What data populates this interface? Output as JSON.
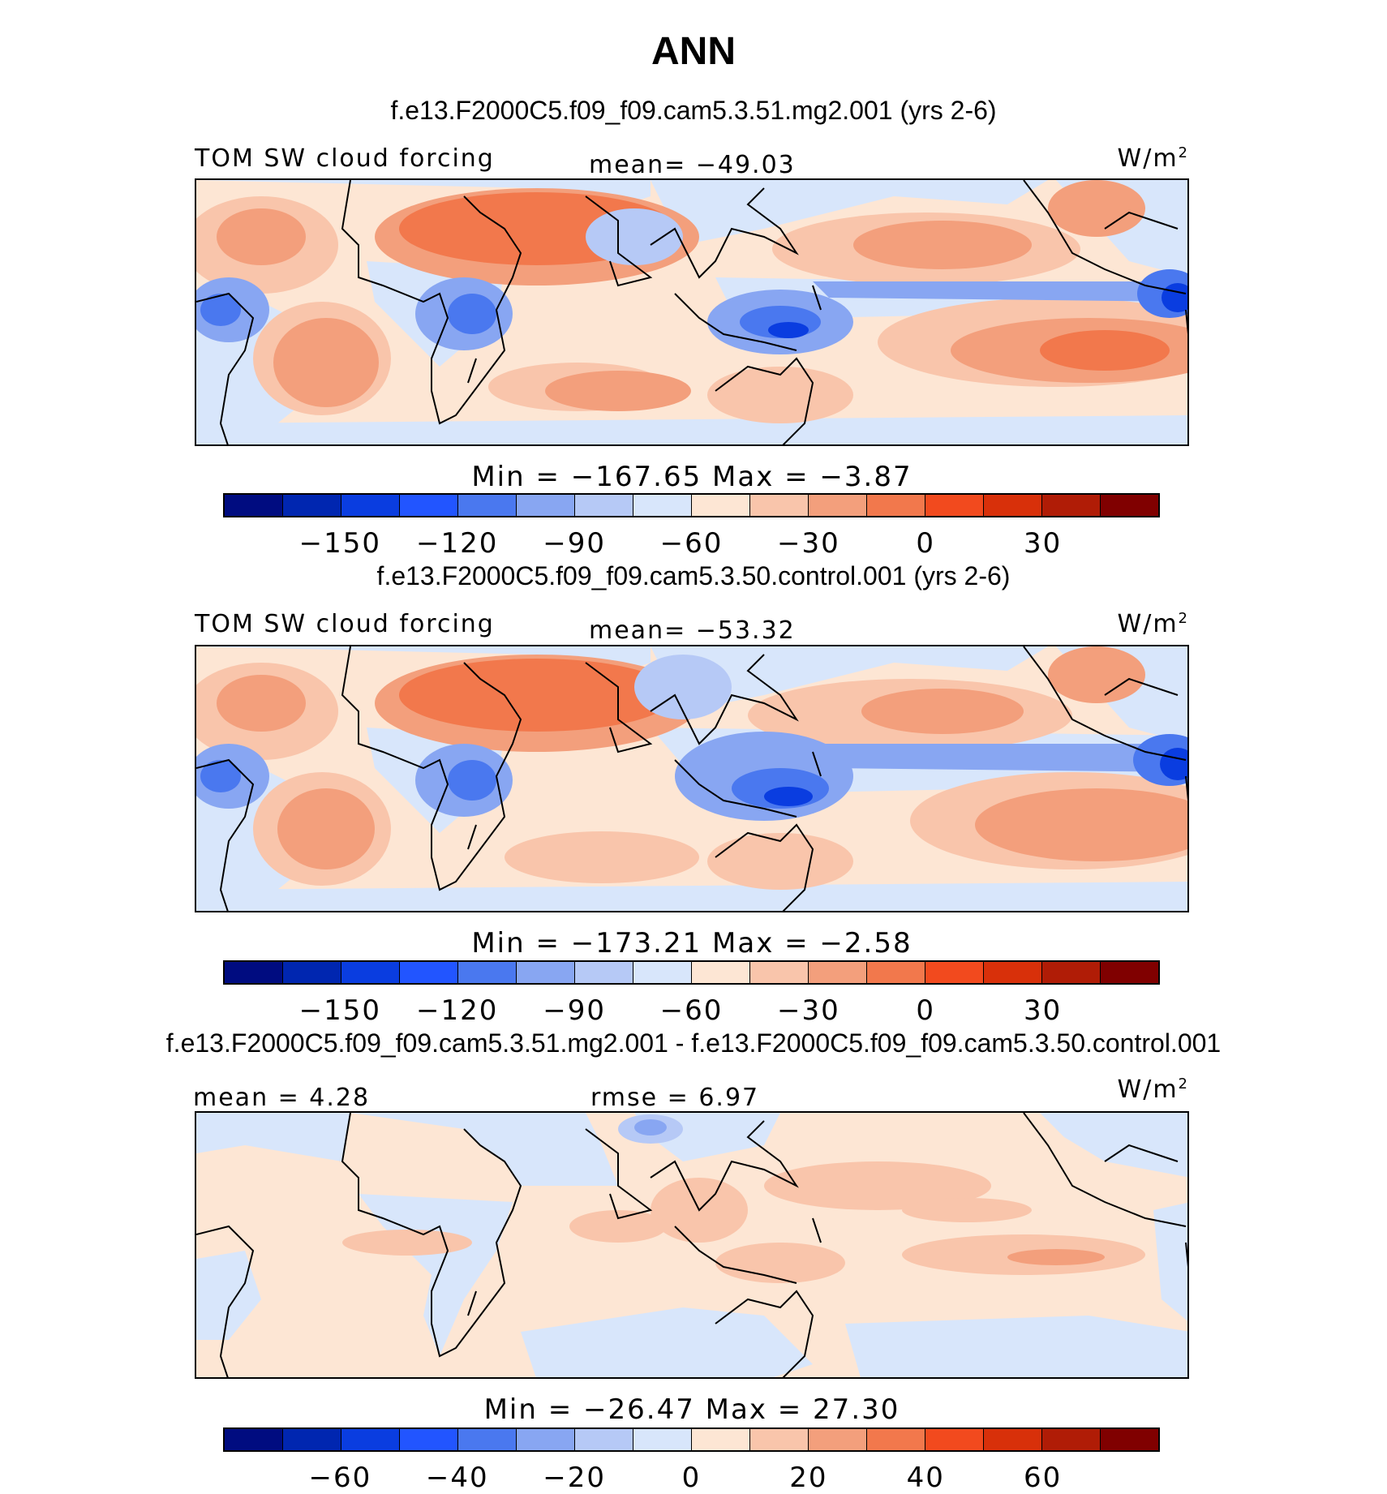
{
  "title": "ANN",
  "panels": [
    {
      "case": "f.e13.F2000C5.f09_f09.cam5.3.51.mg2.001 (yrs 2-6)",
      "variable": "TOM SW cloud forcing",
      "stat_center": "mean= −49.03",
      "units_base": "W/m",
      "units_exp": "2",
      "minmax": "Min  =  −167.65  Max  =   −3.87",
      "colorbar_ticks": [
        "−150",
        "−120",
        "−90",
        "−60",
        "−30",
        "0",
        "30"
      ]
    },
    {
      "case": "f.e13.F2000C5.f09_f09.cam5.3.50.control.001 (yrs 2-6)",
      "variable": "TOM SW cloud forcing",
      "stat_center": "mean= −53.32",
      "units_base": "W/m",
      "units_exp": "2",
      "minmax": "Min  =  −173.21  Max  =   −2.58",
      "colorbar_ticks": [
        "−150",
        "−120",
        "−90",
        "−60",
        "−30",
        "0",
        "30"
      ]
    },
    {
      "case": "f.e13.F2000C5.f09_f09.cam5.3.51.mg2.001 - f.e13.F2000C5.f09_f09.cam5.3.50.control.001",
      "stat_left": "mean  =    4.28",
      "stat_center": "rmse  =    6.97",
      "units_base": "W/m",
      "units_exp": "2",
      "minmax": "Min  =  −26.47  Max  =   27.30",
      "colorbar_ticks": [
        "−60",
        "−40",
        "−20",
        "0",
        "20",
        "40",
        "60"
      ]
    }
  ],
  "colormap": [
    "#000c80",
    "#0026b0",
    "#0a3de0",
    "#2255ff",
    "#4a78ef",
    "#88a6f2",
    "#b6c9f6",
    "#d8e6fb",
    "#fde6d4",
    "#f9c5ab",
    "#f39f7c",
    "#f2784c",
    "#f24a1e",
    "#d8300a",
    "#b01c06",
    "#800000"
  ]
}
